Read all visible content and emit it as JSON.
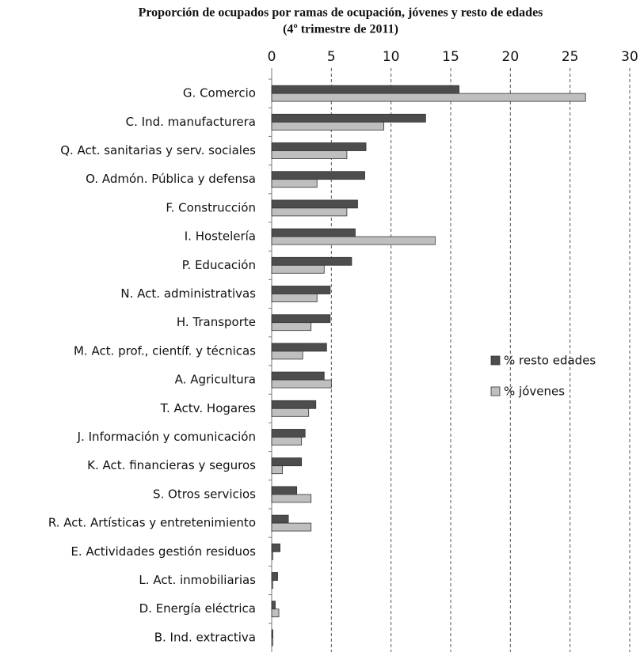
{
  "chart_data": {
    "type": "hbar",
    "title": "Proporción de ocupados por ramas de ocupación, jóvenes y resto de edades",
    "subtitle": "(4º trimestre de 2011)",
    "categories": [
      "G. Comercio",
      "C. Ind. manufacturera",
      "Q. Act. sanitarias y serv. sociales",
      "O. Admón. Pública y defensa",
      "F. Construcción",
      "I. Hostelería",
      "P. Educación",
      "N. Act. administrativas",
      "H. Transporte",
      "M. Act. prof., científ. y técnicas",
      "A. Agricultura",
      "T. Actv. Hogares",
      "J. Información y comunicación",
      "K. Act. financieras y seguros",
      "S. Otros servicios",
      "R. Act. Artísticas y entretenimiento",
      "E. Actividades gestión residuos",
      "L. Act. inmobiliarias",
      "D. Energía eléctrica",
      "B. Ind. extractiva"
    ],
    "series": [
      {
        "name": "% resto edades",
        "color": "#4d4d4d",
        "values": [
          15.7,
          12.9,
          7.9,
          7.8,
          7.2,
          7.0,
          6.7,
          4.9,
          4.9,
          4.6,
          4.4,
          3.7,
          2.8,
          2.5,
          2.1,
          1.4,
          0.7,
          0.5,
          0.3,
          0.1
        ]
      },
      {
        "name": "% jóvenes",
        "color": "#bfbfbf",
        "values": [
          26.3,
          9.4,
          6.3,
          3.8,
          6.3,
          13.7,
          4.4,
          3.8,
          3.3,
          2.6,
          5.0,
          3.1,
          2.5,
          0.9,
          3.3,
          3.3,
          0.1,
          0.1,
          0.6,
          0.1
        ]
      }
    ],
    "xlim": [
      0,
      30
    ],
    "xticks": [
      0,
      5,
      10,
      15,
      20,
      25,
      30
    ],
    "grid": true,
    "legend": "right"
  }
}
